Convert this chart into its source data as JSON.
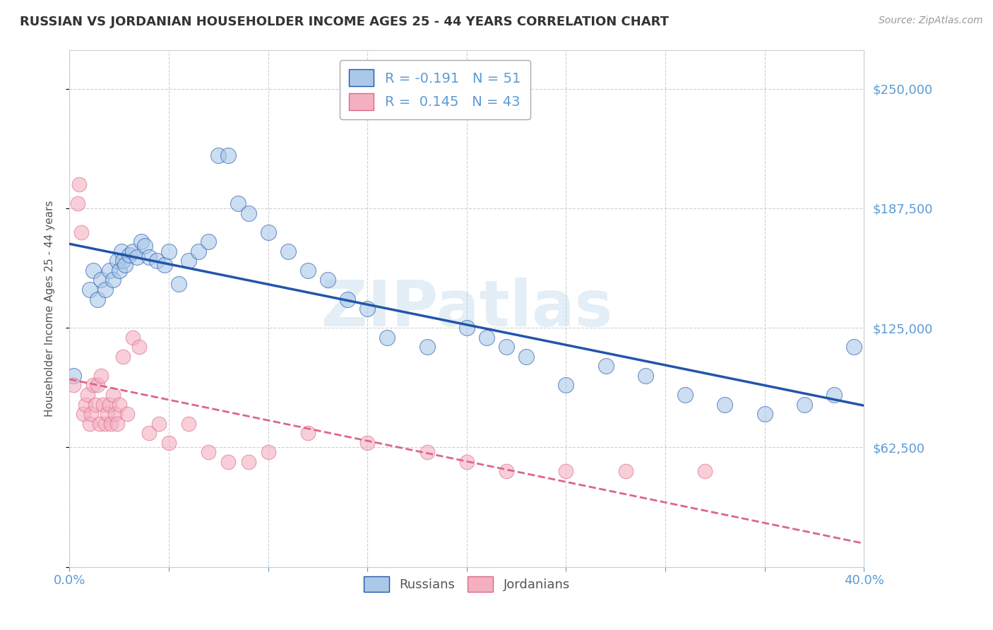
{
  "title": "RUSSIAN VS JORDANIAN HOUSEHOLDER INCOME AGES 25 - 44 YEARS CORRELATION CHART",
  "source": "Source: ZipAtlas.com",
  "ylabel": "Householder Income Ages 25 - 44 years",
  "xlim": [
    0.0,
    0.4
  ],
  "ylim": [
    0,
    270000
  ],
  "yticks": [
    0,
    62500,
    125000,
    187500,
    250000
  ],
  "ytick_labels": [
    "",
    "$62,500",
    "$125,000",
    "$187,500",
    "$250,000"
  ],
  "xticks": [
    0.0,
    0.05,
    0.1,
    0.15,
    0.2,
    0.25,
    0.3,
    0.35,
    0.4
  ],
  "xtick_labels": [
    "0.0%",
    "",
    "",
    "",
    "",
    "",
    "",
    "",
    "40.0%"
  ],
  "watermark": "ZIPatlas",
  "watermark_color": "#b0cfe8",
  "bg_color": "#ffffff",
  "grid_color": "#d0d0d0",
  "tick_label_color": "#5b9bd5",
  "legend_line1": "R = -0.191   N = 51",
  "legend_line2": "R =  0.145   N = 43",
  "russian_color": "#aac8e8",
  "jordanian_color": "#f4b0c0",
  "russian_line_color": "#2255aa",
  "jordanian_line_color": "#dd6688",
  "russians_x": [
    0.002,
    0.01,
    0.012,
    0.014,
    0.016,
    0.018,
    0.02,
    0.022,
    0.024,
    0.025,
    0.026,
    0.027,
    0.028,
    0.03,
    0.032,
    0.034,
    0.036,
    0.038,
    0.04,
    0.044,
    0.048,
    0.05,
    0.055,
    0.06,
    0.065,
    0.07,
    0.075,
    0.08,
    0.085,
    0.09,
    0.1,
    0.11,
    0.12,
    0.13,
    0.14,
    0.15,
    0.16,
    0.18,
    0.2,
    0.21,
    0.22,
    0.23,
    0.25,
    0.27,
    0.29,
    0.31,
    0.33,
    0.35,
    0.37,
    0.385,
    0.395
  ],
  "russians_y": [
    100000,
    145000,
    155000,
    140000,
    150000,
    145000,
    155000,
    150000,
    160000,
    155000,
    165000,
    160000,
    158000,
    163000,
    165000,
    162000,
    170000,
    168000,
    162000,
    160000,
    158000,
    165000,
    148000,
    160000,
    165000,
    170000,
    215000,
    215000,
    190000,
    185000,
    175000,
    165000,
    155000,
    150000,
    140000,
    135000,
    120000,
    115000,
    125000,
    120000,
    115000,
    110000,
    95000,
    105000,
    100000,
    90000,
    85000,
    80000,
    85000,
    90000,
    115000
  ],
  "jordanians_x": [
    0.002,
    0.004,
    0.005,
    0.006,
    0.007,
    0.008,
    0.009,
    0.01,
    0.011,
    0.012,
    0.013,
    0.014,
    0.015,
    0.016,
    0.017,
    0.018,
    0.019,
    0.02,
    0.021,
    0.022,
    0.023,
    0.024,
    0.025,
    0.027,
    0.029,
    0.032,
    0.035,
    0.04,
    0.045,
    0.05,
    0.06,
    0.07,
    0.08,
    0.09,
    0.1,
    0.12,
    0.15,
    0.18,
    0.2,
    0.22,
    0.25,
    0.28,
    0.32
  ],
  "jordanians_y": [
    95000,
    190000,
    200000,
    175000,
    80000,
    85000,
    90000,
    75000,
    80000,
    95000,
    85000,
    95000,
    75000,
    100000,
    85000,
    75000,
    80000,
    85000,
    75000,
    90000,
    80000,
    75000,
    85000,
    110000,
    80000,
    120000,
    115000,
    70000,
    75000,
    65000,
    75000,
    60000,
    55000,
    55000,
    60000,
    70000,
    65000,
    60000,
    55000,
    50000,
    50000,
    50000,
    50000
  ]
}
